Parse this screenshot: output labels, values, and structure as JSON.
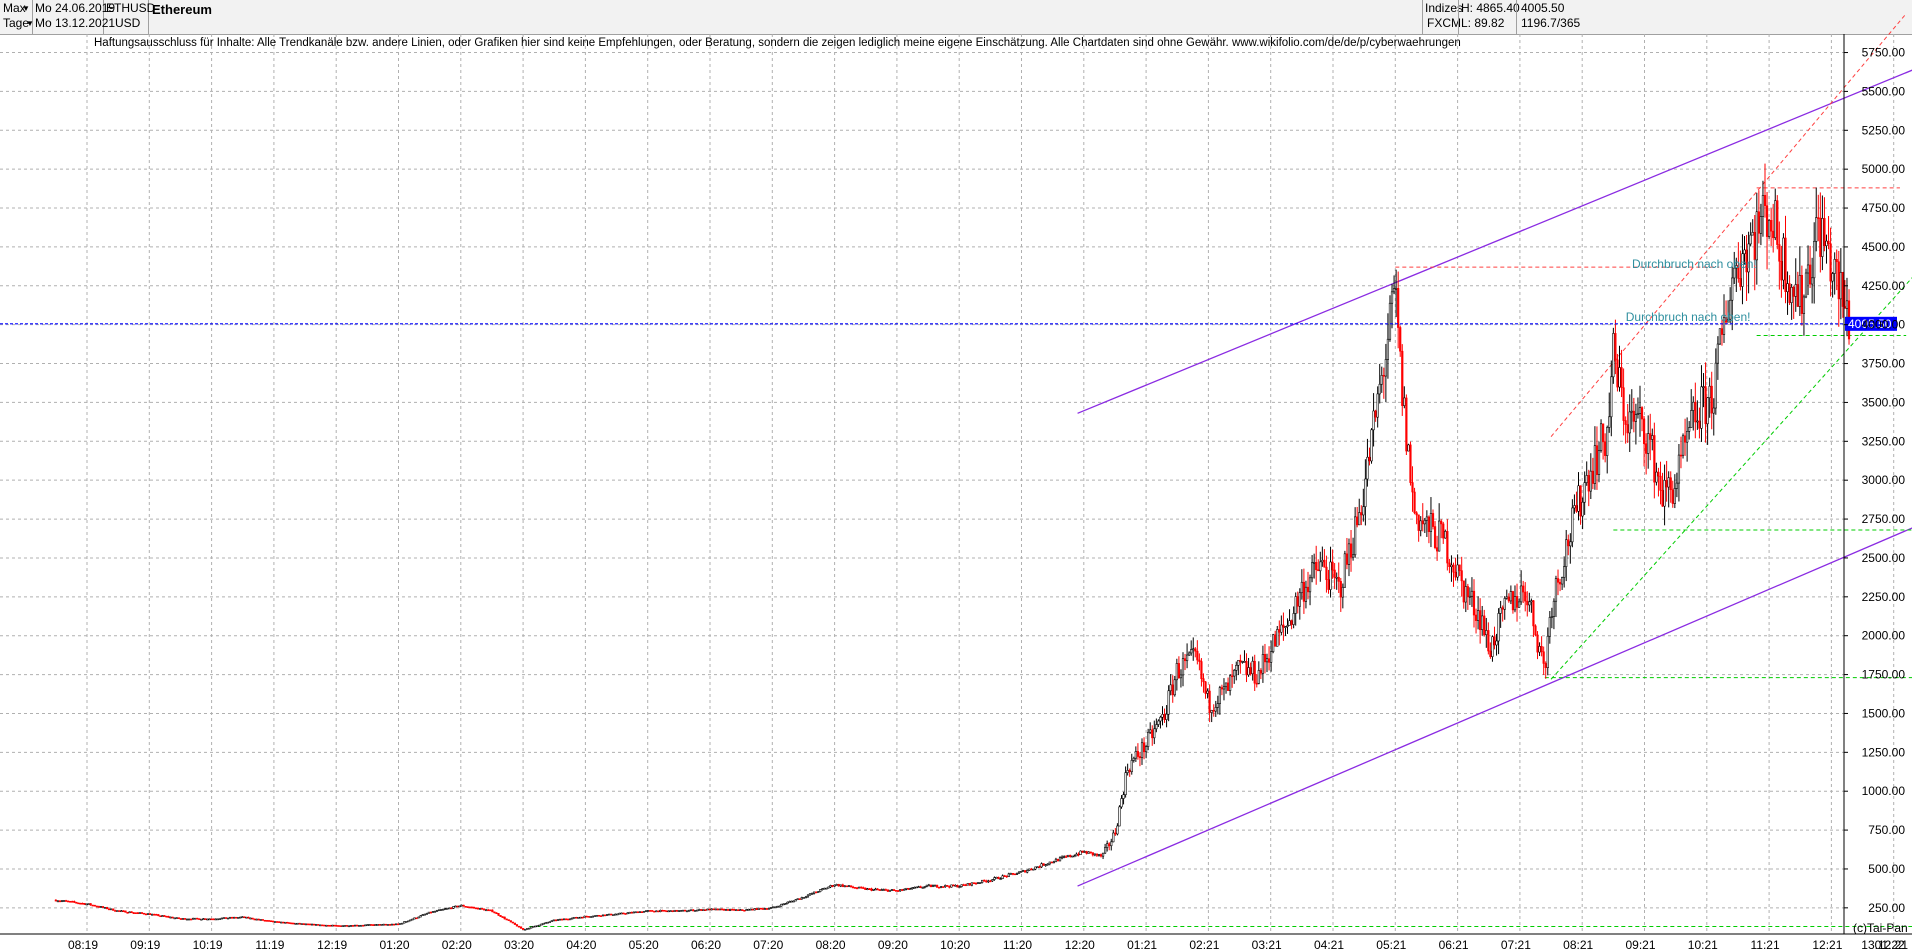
{
  "toolbar": {
    "range_label": "Max",
    "interval_label": "Tage",
    "start_date": "Mo 24.06.2019",
    "end_date": "Mo 13.12.2021",
    "symbol": "ETHUSD",
    "currency": "USD",
    "instrument_name": "Ethereum",
    "index_label": "Indizes",
    "source_label": "FXCM",
    "high_text": "H: 4865.40",
    "low_text": "L: 89.82",
    "last_price": "4005.50",
    "ratio_text": "1196.7/365"
  },
  "disclaimer": "Haftungsausschluss für Inhalte: Alle Trendkanäle bzw. andere Linien, oder Grafiken hier sind keine Empfehlungen, oder Beratung, sondern die zeigen lediglich meine eigene Einschätzung. Alle Chartdaten sind ohne Gewähr.  www.wikifolio.com/de/de/p/cyberwaehrungen",
  "copyright": "(c)Tai-Pan",
  "colors": {
    "bull": "#000000",
    "bear": "#ff0000",
    "channel": "#8a2be2",
    "price_line": "#0000ff",
    "support": "#00cc00",
    "resistance": "#ff4040",
    "annotation": "#2f8f9f",
    "grid": "#b0b0b0"
  },
  "chart_data": {
    "type": "candlestick",
    "title": "Ethereum",
    "ylim": [
      130,
      6010
    ],
    "y_ticks": [
      "250.00",
      "500.00",
      "750.00",
      "1000.00",
      "1250.00",
      "1500.00",
      "1750.00",
      "2000.00",
      "2250.00",
      "2500.00",
      "2750.00",
      "3000.00",
      "3250.00",
      "3500.00",
      "3750.00",
      "4000.00",
      "4250.00",
      "4500.00",
      "4750.00",
      "5000.00",
      "5250.00",
      "5500.00",
      "5750.00"
    ],
    "x_ticks": [
      "08:19",
      "09:19",
      "10:19",
      "11:19",
      "12:19",
      "01:20",
      "02:20",
      "03:20",
      "04:20",
      "05:20",
      "06:20",
      "07:20",
      "08:20",
      "09:20",
      "10:20",
      "11:20",
      "12:20",
      "01:21",
      "02:21",
      "03:21",
      "04:21",
      "05:21",
      "06:21",
      "07:21",
      "08:21",
      "09:21",
      "10:21",
      "11:21",
      "12:21",
      "01:22",
      "02:22"
    ],
    "x_last_label": "13.12.21",
    "current_price": 4005.5,
    "current_price_label": "4005.50",
    "close_series": [
      [
        0,
        300
      ],
      [
        0.5,
        275
      ],
      [
        1,
        230
      ],
      [
        1.5,
        210
      ],
      [
        2,
        180
      ],
      [
        2.5,
        180
      ],
      [
        3,
        190
      ],
      [
        3.5,
        160
      ],
      [
        4,
        145
      ],
      [
        4.5,
        135
      ],
      [
        5,
        140
      ],
      [
        5.5,
        145
      ],
      [
        6,
        220
      ],
      [
        6.5,
        265
      ],
      [
        7,
        230
      ],
      [
        7.5,
        110
      ],
      [
        8,
        170
      ],
      [
        8.5,
        195
      ],
      [
        9,
        210
      ],
      [
        9.5,
        230
      ],
      [
        10,
        230
      ],
      [
        10.5,
        240
      ],
      [
        11,
        235
      ],
      [
        11.5,
        250
      ],
      [
        12,
        320
      ],
      [
        12.5,
        400
      ],
      [
        13,
        370
      ],
      [
        13.5,
        360
      ],
      [
        14,
        390
      ],
      [
        14.5,
        390
      ],
      [
        15,
        430
      ],
      [
        15.5,
        480
      ],
      [
        16,
        550
      ],
      [
        16.5,
        610
      ],
      [
        16.8,
        580
      ],
      [
        17,
        730
      ],
      [
        17.2,
        1150
      ],
      [
        17.5,
        1300
      ],
      [
        17.8,
        1500
      ],
      [
        18,
        1780
      ],
      [
        18.3,
        1850
      ],
      [
        18.5,
        1560
      ],
      [
        18.8,
        1650
      ],
      [
        19,
        1790
      ],
      [
        19.3,
        1750
      ],
      [
        19.5,
        1920
      ],
      [
        19.8,
        2100
      ],
      [
        20,
        2300
      ],
      [
        20.3,
        2450
      ],
      [
        20.6,
        2300
      ],
      [
        20.9,
        2750
      ],
      [
        21,
        2950
      ],
      [
        21.2,
        3450
      ],
      [
        21.5,
        4200
      ],
      [
        21.6,
        3600
      ],
      [
        21.8,
        2800
      ],
      [
        22,
        2700
      ],
      [
        22.3,
        2600
      ],
      [
        22.6,
        2300
      ],
      [
        22.9,
        2100
      ],
      [
        23,
        1900
      ],
      [
        23.3,
        2200
      ],
      [
        23.6,
        2300
      ],
      [
        23.9,
        1780
      ],
      [
        24,
        2200
      ],
      [
        24.3,
        2650
      ],
      [
        24.6,
        3050
      ],
      [
        24.9,
        3300
      ],
      [
        25,
        3800
      ],
      [
        25.2,
        3400
      ],
      [
        25.5,
        3350
      ],
      [
        25.8,
        2900
      ],
      [
        26,
        2980
      ],
      [
        26.3,
        3400
      ],
      [
        26.6,
        3550
      ],
      [
        26.9,
        4300
      ],
      [
        27,
        4400
      ],
      [
        27.3,
        4620
      ],
      [
        27.5,
        4750
      ],
      [
        27.7,
        4450
      ],
      [
        28,
        4150
      ],
      [
        28.3,
        4650
      ],
      [
        28.6,
        4250
      ],
      [
        28.8,
        4005.5
      ]
    ],
    "series_label_high": "H: 4865.40",
    "series_label_low": "L: 89.82",
    "annotations": [
      {
        "text": "Durchbruch nach oben!",
        "month": 26.3,
        "price": 4390
      },
      {
        "text": "Durchbruch nach oben!",
        "month": 26.2,
        "price": 4050
      }
    ],
    "lines": [
      {
        "name": "upper-channel",
        "style": "solid",
        "color": "#8a2be2",
        "from": [
          16.4,
          3430
        ],
        "to": [
          31.7,
          5950
        ]
      },
      {
        "name": "lower-channel",
        "style": "solid",
        "color": "#8a2be2",
        "from": [
          16.4,
          390
        ],
        "to": [
          31.7,
          3020
        ]
      },
      {
        "name": "resistance-may21",
        "style": "dashed",
        "color": "#ff4040",
        "from": [
          21.5,
          4370
        ],
        "to": [
          26.7,
          4370
        ]
      },
      {
        "name": "resistance-nov21",
        "style": "dashed",
        "color": "#ff4040",
        "from": [
          27.3,
          4880
        ],
        "to": [
          29.6,
          4880
        ]
      },
      {
        "name": "rising-red",
        "style": "dashed",
        "color": "#ff4040",
        "from": [
          24.0,
          3280
        ],
        "to": [
          29.7,
          6000
        ]
      },
      {
        "name": "rising-green",
        "style": "dashed",
        "color": "#00cc00",
        "from": [
          24.0,
          1720
        ],
        "to": [
          31.7,
          5150
        ]
      },
      {
        "name": "support-jul21",
        "style": "dashed",
        "color": "#00cc00",
        "from": [
          23.9,
          1730
        ],
        "to": [
          31.7,
          1730
        ]
      },
      {
        "name": "support-sep21",
        "style": "dashed",
        "color": "#00cc00",
        "from": [
          25.0,
          2680
        ],
        "to": [
          30.3,
          2680
        ]
      },
      {
        "name": "support-dec21",
        "style": "dashed",
        "color": "#00cc00",
        "from": [
          27.3,
          3930
        ],
        "to": [
          29.7,
          3930
        ]
      },
      {
        "name": "support-base",
        "style": "dashed",
        "color": "#00cc00",
        "from": [
          7.6,
          130
        ],
        "to": [
          31.7,
          130
        ]
      }
    ]
  }
}
